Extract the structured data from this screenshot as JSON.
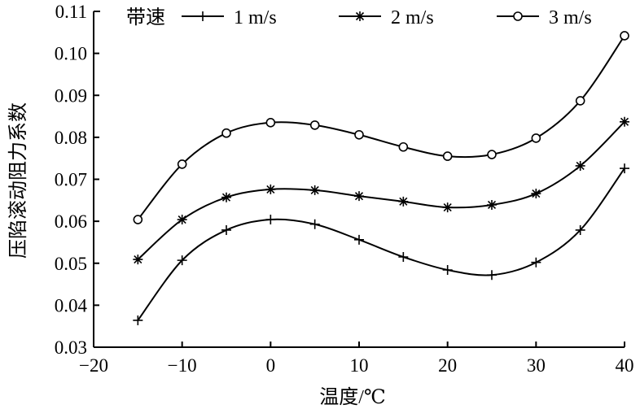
{
  "chart_data": {
    "type": "line",
    "xlabel": "温度/℃",
    "ylabel": "压陷滚动阻力系数",
    "legend_title": "带速",
    "legend_position": "top",
    "xlim": [
      -20,
      40
    ],
    "ylim": [
      0.03,
      0.11
    ],
    "xticks": [
      "−20",
      "−10",
      "0",
      "10",
      "20",
      "30",
      "40"
    ],
    "xtick_values": [
      -20,
      -10,
      0,
      10,
      20,
      30,
      40
    ],
    "yticks": [
      "0.03",
      "0.04",
      "0.05",
      "0.06",
      "0.07",
      "0.08",
      "0.09",
      "0.10",
      "0.11"
    ],
    "ytick_values": [
      0.03,
      0.04,
      0.05,
      0.06,
      0.07,
      0.08,
      0.09,
      0.1,
      0.11
    ],
    "grid": false,
    "x": [
      -15,
      -10,
      -5,
      0,
      5,
      10,
      15,
      20,
      25,
      30,
      35,
      40
    ],
    "series": [
      {
        "name": "1 m/s",
        "marker": "plus",
        "values": [
          0.0364,
          0.0507,
          0.0579,
          0.0604,
          0.0593,
          0.0556,
          0.0515,
          0.0484,
          0.0472,
          0.0502,
          0.0579,
          0.0726
        ]
      },
      {
        "name": "2 m/s",
        "marker": "asterisk",
        "values": [
          0.0509,
          0.0604,
          0.0657,
          0.0676,
          0.0674,
          0.066,
          0.0647,
          0.0633,
          0.0639,
          0.0666,
          0.0732,
          0.0837
        ]
      },
      {
        "name": "3 m/s",
        "marker": "circle",
        "values": [
          0.0604,
          0.0736,
          0.081,
          0.0835,
          0.0829,
          0.0806,
          0.0777,
          0.0755,
          0.0759,
          0.0798,
          0.0887,
          0.1042
        ]
      }
    ],
    "color": "#000000"
  }
}
